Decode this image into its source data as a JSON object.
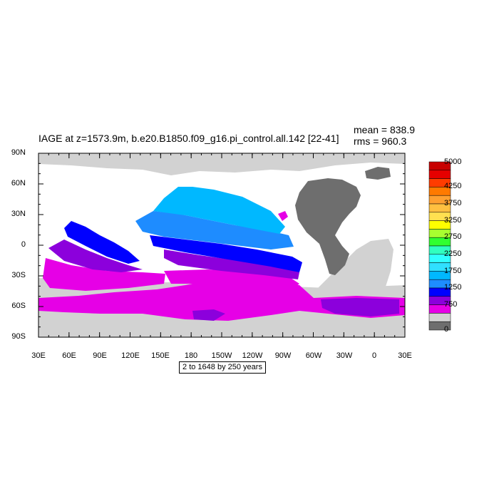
{
  "plot": {
    "title": "IAGE at z=1573.9m, b.e20.B1850.f09_g16.pi_control.all.142 [22-41]",
    "mean_text": "mean = 838.9",
    "rms_text": "rms = 960.3",
    "footnote": "2 to 1648 by 250 years",
    "lat_labels": [
      "90N",
      "60N",
      "30N",
      "0",
      "30S",
      "60S",
      "90S"
    ],
    "lon_labels": [
      "30E",
      "60E",
      "90E",
      "120E",
      "150E",
      "180",
      "150W",
      "120W",
      "90W",
      "60W",
      "30W",
      "0",
      "30E"
    ]
  },
  "colorbar": {
    "labels": [
      "5000",
      "4250",
      "3750",
      "3250",
      "2750",
      "2250",
      "1750",
      "1250",
      "750",
      "0"
    ],
    "colors": [
      "#c80000",
      "#e60000",
      "#ff3c00",
      "#ff7a00",
      "#ffa030",
      "#ffc040",
      "#ffe050",
      "#ffff00",
      "#a8ff30",
      "#30ff30",
      "#30ffc0",
      "#30ffff",
      "#30e0ff",
      "#00b8ff",
      "#1e8cff",
      "#0000ff",
      "#8c00dc",
      "#e600e6",
      "#d2d2d2",
      "#6e6e6e"
    ]
  },
  "colors": {
    "land": "#d2d2d2",
    "americas": "#6e6e6e",
    "cyan": "#00b8ff",
    "mid_blue": "#1e8cff",
    "blue": "#0000ff",
    "purple": "#8c00dc",
    "magenta": "#e600e6"
  }
}
